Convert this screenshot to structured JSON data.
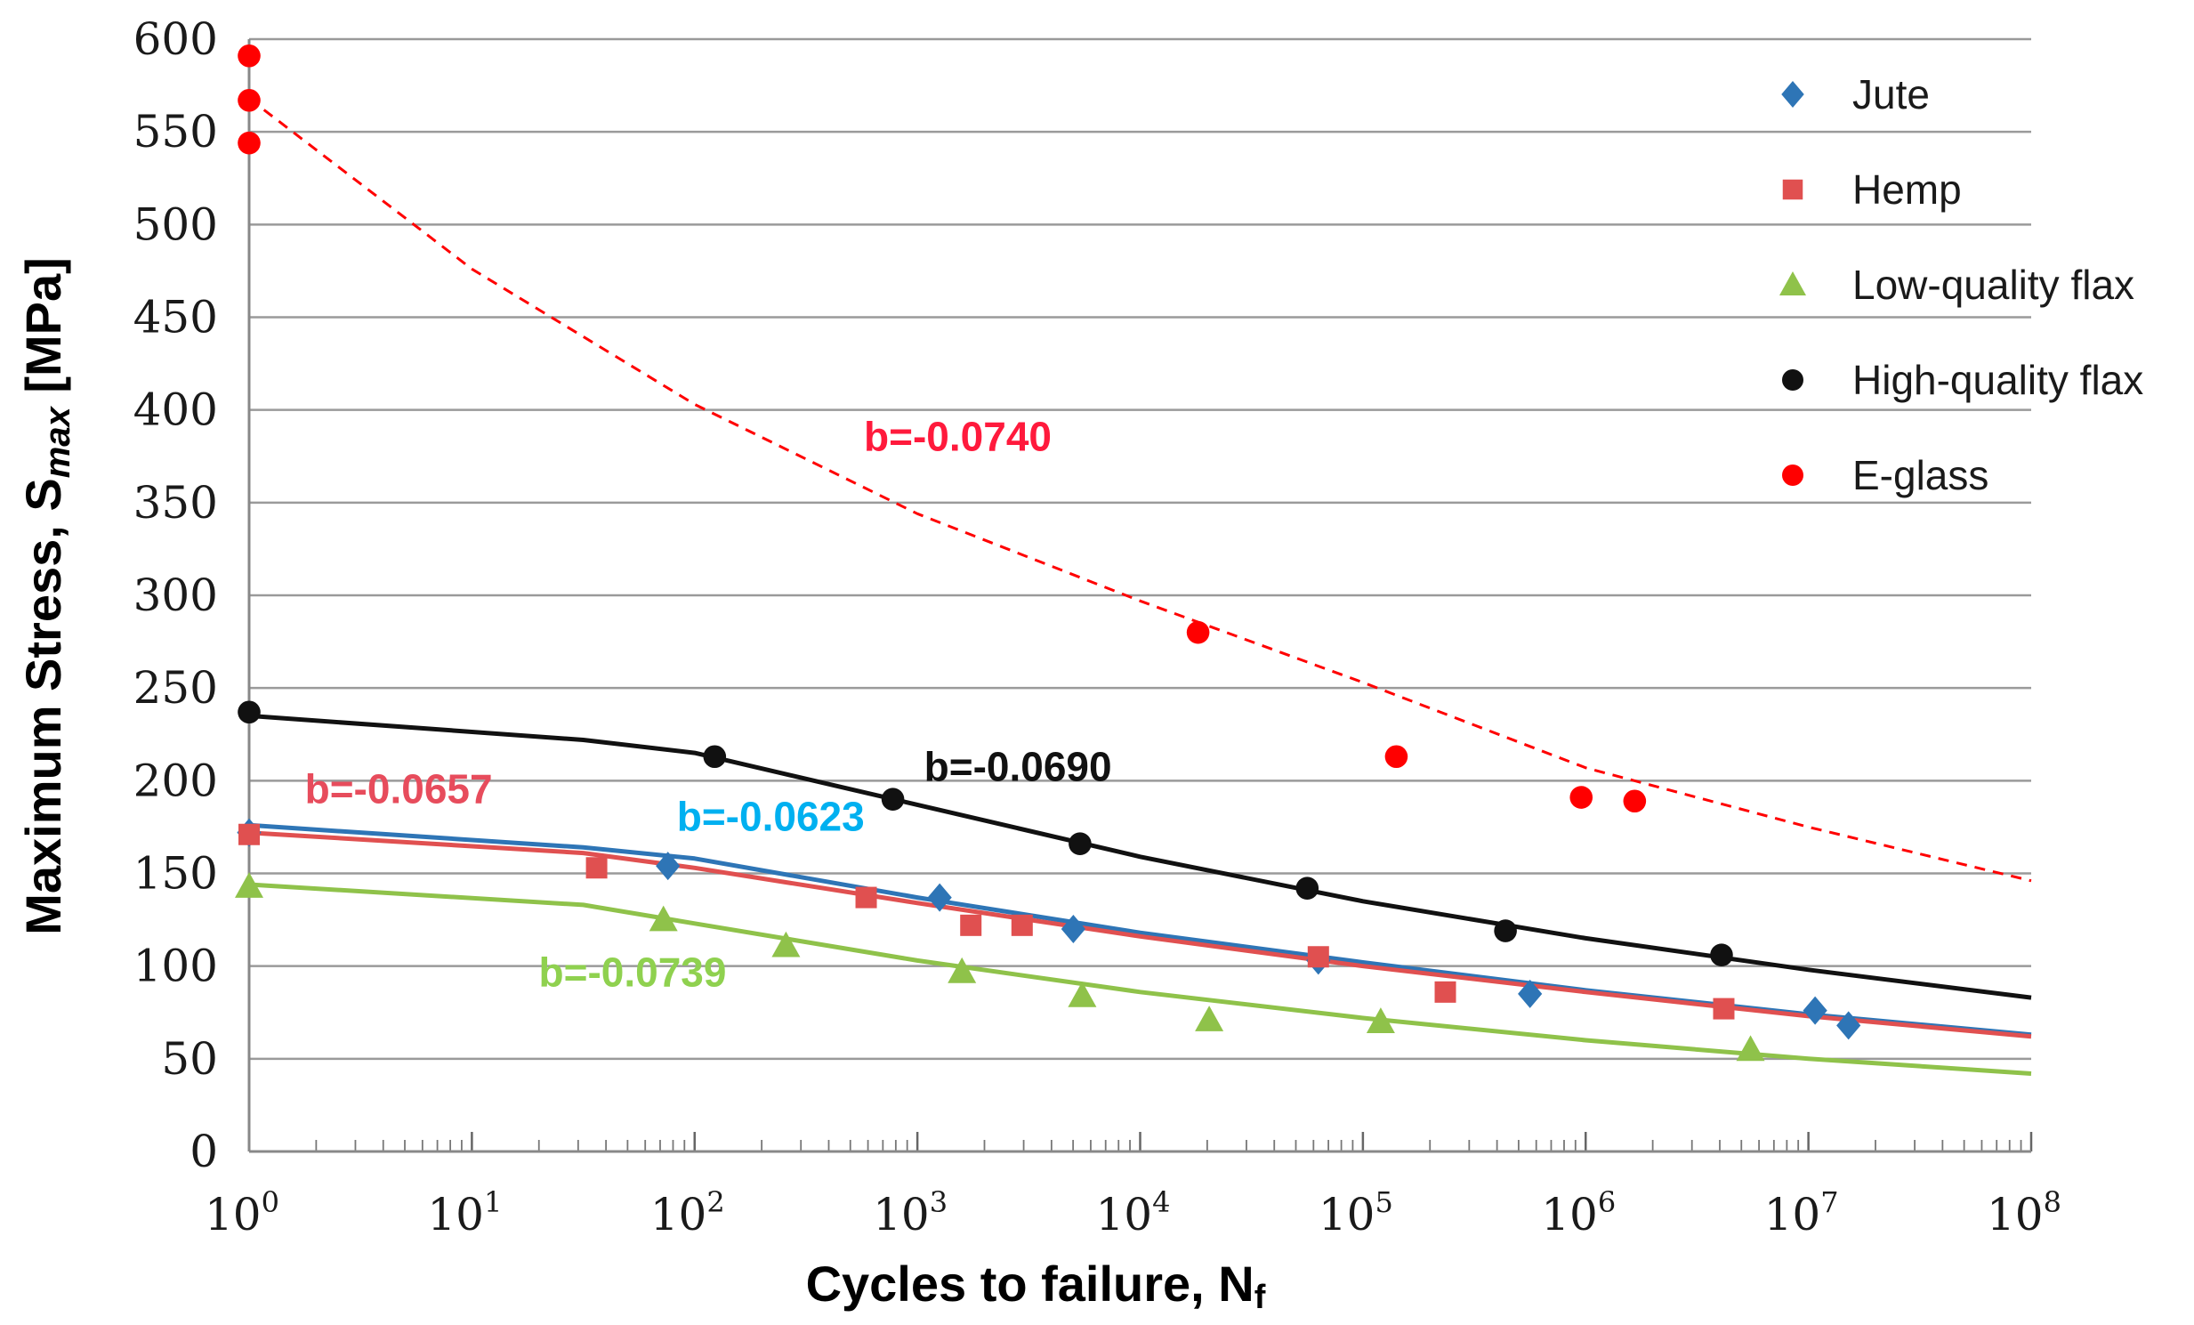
{
  "chart_data": {
    "type": "scatter",
    "xscale": "log",
    "xlim_log10": [
      0,
      8
    ],
    "ylim": [
      0,
      600
    ],
    "ylabel": "Maximum Stress, S",
    "ylabel_sub": "max",
    "ylabel_unit": " [MPa]",
    "xlabel": "Cycles to failure, N",
    "xlabel_sub": "f",
    "yticks": [
      0,
      50,
      100,
      150,
      200,
      250,
      300,
      350,
      400,
      450,
      500,
      550,
      600
    ],
    "xticks": [
      {
        "base": "10",
        "exp": "0"
      },
      {
        "base": "10",
        "exp": "1"
      },
      {
        "base": "10",
        "exp": "2"
      },
      {
        "base": "10",
        "exp": "3"
      },
      {
        "base": "10",
        "exp": "4"
      },
      {
        "base": "10",
        "exp": "5"
      },
      {
        "base": "10",
        "exp": "6"
      },
      {
        "base": "10",
        "exp": "7"
      },
      {
        "base": "10",
        "exp": "8"
      }
    ],
    "series": [
      {
        "name": "Jute",
        "color": "#2e75b6",
        "marker": "diamond",
        "points": [
          [
            0.0,
            172
          ],
          [
            1.88,
            154
          ],
          [
            3.1,
            137
          ],
          [
            3.7,
            120
          ],
          [
            4.8,
            103
          ],
          [
            5.75,
            85
          ],
          [
            7.03,
            76
          ],
          [
            7.18,
            68
          ]
        ],
        "fit": [
          [
            0.0,
            176
          ],
          [
            1.5,
            164
          ],
          [
            2.0,
            158
          ],
          [
            3.0,
            137
          ],
          [
            4.0,
            118
          ],
          [
            5.0,
            102
          ],
          [
            6.0,
            87
          ],
          [
            7.0,
            74
          ],
          [
            8.0,
            63
          ]
        ],
        "fit_label": "b=-0.0623",
        "fit_label_color": "#00b0f0",
        "fit_label_at": [
          1.92,
          173
        ]
      },
      {
        "name": "Hemp",
        "color": "#e05050",
        "marker": "square",
        "points": [
          [
            0.0,
            171
          ],
          [
            1.56,
            153
          ],
          [
            2.77,
            137
          ],
          [
            3.24,
            122
          ],
          [
            3.47,
            122
          ],
          [
            4.8,
            105
          ],
          [
            5.37,
            86
          ],
          [
            6.62,
            77
          ]
        ],
        "fit": [
          [
            0.0,
            172
          ],
          [
            1.5,
            161
          ],
          [
            2.0,
            153
          ],
          [
            3.0,
            134
          ],
          [
            4.0,
            116
          ],
          [
            5.0,
            100
          ],
          [
            6.0,
            86
          ],
          [
            7.0,
            73
          ],
          [
            8.0,
            62
          ]
        ],
        "fit_label": "b=-0.0657",
        "fit_label_color": "#e74c5c",
        "fit_label_at": [
          0.25,
          188
        ]
      },
      {
        "name": "Low-quality flax",
        "color": "#8fc24a",
        "marker": "triangle",
        "points": [
          [
            0.0,
            143
          ],
          [
            1.86,
            125
          ],
          [
            2.41,
            111
          ],
          [
            3.2,
            97
          ],
          [
            3.74,
            84
          ],
          [
            4.31,
            71
          ],
          [
            5.08,
            70
          ],
          [
            6.74,
            55
          ]
        ],
        "fit": [
          [
            0.0,
            144
          ],
          [
            1.5,
            133
          ],
          [
            2.0,
            123
          ],
          [
            3.0,
            103
          ],
          [
            4.0,
            86
          ],
          [
            5.0,
            72
          ],
          [
            6.0,
            60
          ],
          [
            7.0,
            50
          ],
          [
            8.0,
            42
          ]
        ],
        "fit_label": "b=-0.0739",
        "fit_label_color": "#8fd14f",
        "fit_label_at": [
          1.3,
          89
        ]
      },
      {
        "name": "High-quality flax",
        "color": "#111111",
        "marker": "circle",
        "points": [
          [
            0.0,
            237
          ],
          [
            2.09,
            213
          ],
          [
            2.89,
            190
          ],
          [
            3.73,
            166
          ],
          [
            4.75,
            142
          ],
          [
            5.64,
            119
          ],
          [
            6.61,
            106
          ]
        ],
        "fit": [
          [
            0.0,
            235
          ],
          [
            1.5,
            222
          ],
          [
            2.0,
            215
          ],
          [
            3.0,
            187
          ],
          [
            4.0,
            159
          ],
          [
            5.0,
            135
          ],
          [
            6.0,
            115
          ],
          [
            7.0,
            98
          ],
          [
            8.0,
            83
          ]
        ],
        "fit_label": "b=-0.0690",
        "fit_label_color": "#111111",
        "fit_label_at": [
          3.03,
          200
        ]
      },
      {
        "name": "E-glass",
        "color": "#ff0000",
        "marker": "circle",
        "points": [
          [
            0.0,
            591
          ],
          [
            0.0,
            567
          ],
          [
            0.0,
            544
          ],
          [
            4.26,
            280
          ],
          [
            5.15,
            213
          ],
          [
            5.98,
            191
          ],
          [
            6.22,
            189
          ]
        ],
        "fit": [
          [
            0.0,
            568
          ],
          [
            1.0,
            476
          ],
          [
            2.0,
            403
          ],
          [
            3.0,
            344
          ],
          [
            4.0,
            297
          ],
          [
            5.0,
            253
          ],
          [
            6.0,
            207
          ],
          [
            7.0,
            175
          ],
          [
            8.0,
            146
          ]
        ],
        "fit_dashed": true,
        "fit_label": "b=-0.0740",
        "fit_label_color": "#ff1a3c",
        "fit_label_at": [
          2.76,
          378
        ]
      }
    ],
    "legend_position": "top-right",
    "grid": "horizontal"
  }
}
